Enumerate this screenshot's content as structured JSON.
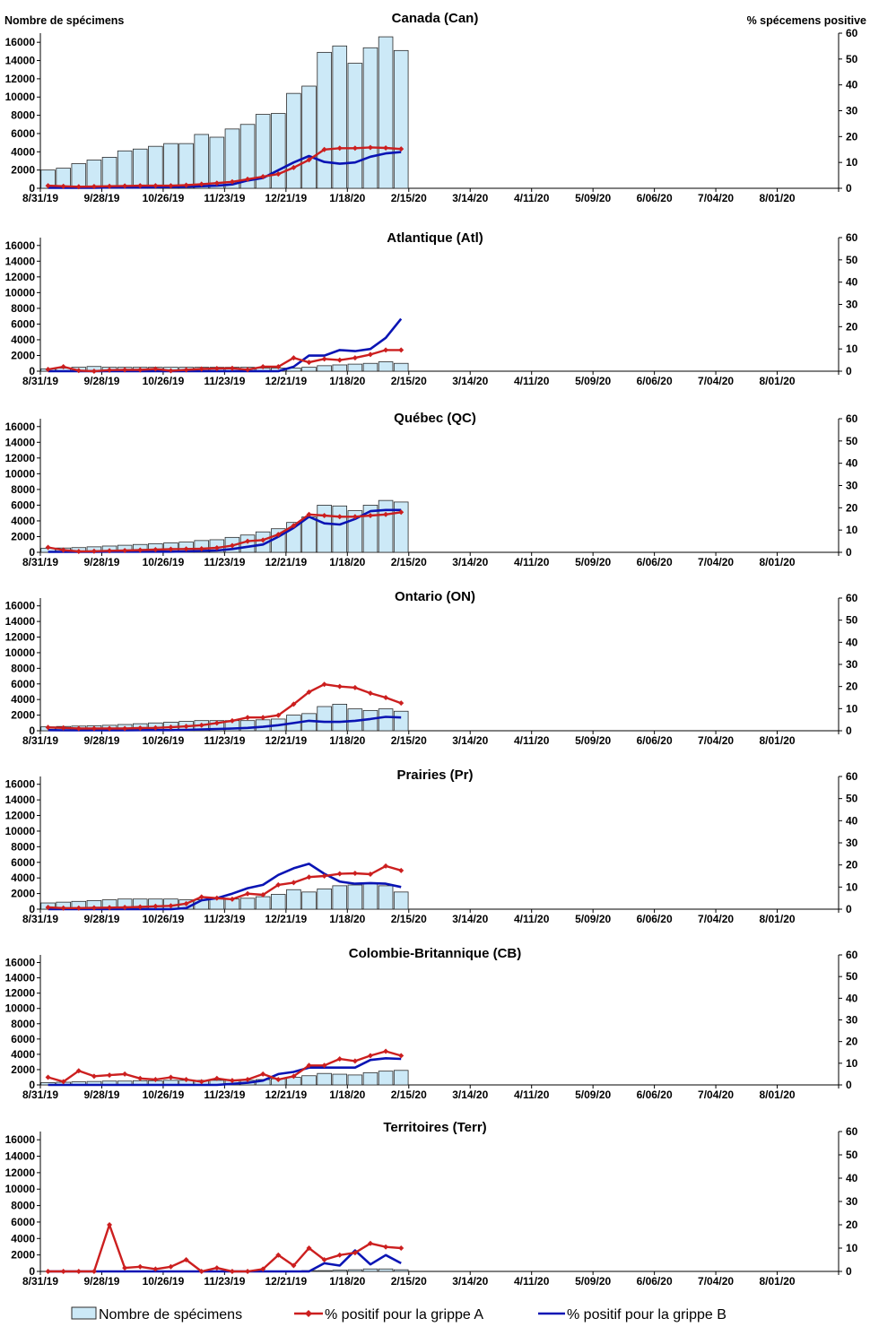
{
  "chart_data": {
    "type": "bar+line",
    "left_axis_label": "Nombre de spécimens",
    "right_axis_label": "% spécemens positive",
    "left_ticks": [
      0,
      2000,
      4000,
      6000,
      8000,
      10000,
      12000,
      14000,
      16000
    ],
    "right_ticks": [
      0,
      10,
      20,
      30,
      40,
      50,
      60
    ],
    "left_range": [
      0,
      17000
    ],
    "right_range": [
      0,
      60
    ],
    "x_tick_labels": [
      "8/31/19",
      "9/28/19",
      "10/26/19",
      "11/23/19",
      "12/21/19",
      "1/18/20",
      "2/15/20",
      "3/14/20",
      "4/11/20",
      "5/09/20",
      "6/06/20",
      "7/04/20",
      "8/01/20"
    ],
    "weeks_per_tick": 4,
    "total_weeks": 52,
    "legend": {
      "specimens": "Nombre de spécimens",
      "flu_a": "% positif pour la grippe A",
      "flu_b": "% positif pour la grippe B"
    },
    "colors": {
      "bar_fill": "#cce9f7",
      "bar_stroke": "#2b2b2b",
      "flu_a": "#cc1f1f",
      "flu_b": "#0a14b4"
    },
    "panels": [
      {
        "title": "Canada (Can)",
        "specimens": [
          2000,
          2200,
          2700,
          3100,
          3400,
          4100,
          4300,
          4600,
          4900,
          4900,
          5900,
          5600,
          6500,
          7000,
          8100,
          8200,
          10400,
          11200,
          14900,
          15600,
          13700,
          15400,
          16600,
          15100
        ],
        "flu_a": [
          1,
          0.8,
          0.6,
          0.7,
          0.8,
          0.9,
          1,
          1,
          1,
          1.2,
          1.6,
          2,
          2.5,
          3.5,
          4.5,
          5.5,
          8,
          11,
          15,
          15.5,
          15.5,
          15.8,
          15.6,
          15.2
        ],
        "flu_b": [
          0.2,
          0.2,
          0.2,
          0.2,
          0.3,
          0.3,
          0.3,
          0.4,
          0.5,
          0.6,
          0.8,
          1,
          1.5,
          3,
          4,
          7,
          10,
          12.5,
          10.2,
          9.5,
          10,
          12.2,
          13.5,
          14
        ]
      },
      {
        "title": "Atlantique (Atl)",
        "specimens": [
          300,
          400,
          500,
          600,
          500,
          500,
          500,
          500,
          500,
          500,
          500,
          500,
          500,
          500,
          400,
          400,
          400,
          500,
          700,
          800,
          900,
          1000,
          1200,
          1000
        ],
        "flu_a": [
          0.8,
          2,
          0.3,
          0,
          0.5,
          0.6,
          0.6,
          1,
          0.2,
          0.6,
          1,
          1.2,
          1.3,
          0.7,
          2,
          2,
          6,
          4,
          5.5,
          5,
          6,
          7.5,
          9.5,
          9.5
        ],
        "flu_b": [
          0,
          0,
          0,
          0,
          0,
          0,
          0,
          0,
          0,
          0,
          0,
          0,
          0,
          0,
          0,
          0,
          2,
          7,
          7,
          9.5,
          9,
          10,
          15,
          23.5
        ]
      },
      {
        "title": "Québec (QC)",
        "specimens": [
          500,
          550,
          600,
          700,
          800,
          900,
          1000,
          1100,
          1200,
          1300,
          1500,
          1600,
          1900,
          2200,
          2600,
          3000,
          3800,
          4500,
          6000,
          5900,
          5300,
          6000,
          6600,
          6400
        ],
        "flu_a": [
          2.2,
          1,
          0.4,
          0.5,
          0.7,
          0.8,
          1,
          1.2,
          1.4,
          1.5,
          1.6,
          2,
          3,
          5,
          5.5,
          8,
          12,
          17,
          16.5,
          16,
          16,
          16.5,
          17,
          18
        ],
        "flu_b": [
          0.2,
          0.2,
          0.2,
          0.2,
          0.3,
          0.3,
          0.3,
          0.3,
          0.3,
          0.4,
          0.6,
          0.8,
          1.5,
          2.5,
          3.5,
          7,
          11,
          16,
          13,
          12.5,
          15,
          18.5,
          19,
          19
        ]
      },
      {
        "title": "Ontario (ON)",
        "specimens": [
          500,
          550,
          600,
          650,
          700,
          800,
          900,
          1000,
          1100,
          1200,
          1300,
          1300,
          1300,
          1300,
          1400,
          1500,
          2000,
          2200,
          3100,
          3400,
          2800,
          2600,
          2800,
          2500
        ],
        "flu_a": [
          1.5,
          1.3,
          1,
          1,
          1,
          1,
          1.2,
          1.3,
          1.6,
          2,
          2.5,
          3.5,
          4.5,
          6,
          6,
          7,
          12,
          17.5,
          21,
          20,
          19.5,
          17,
          15,
          12.5
        ],
        "flu_b": [
          0.3,
          0.2,
          0.2,
          0.2,
          0.2,
          0.2,
          0.3,
          0.3,
          0.3,
          0.4,
          0.6,
          0.8,
          1,
          1.3,
          1.8,
          2.5,
          3.5,
          4.5,
          4,
          4,
          4.5,
          5.3,
          6.3,
          6
        ]
      },
      {
        "title": "Prairies (Pr)",
        "specimens": [
          800,
          900,
          1000,
          1100,
          1200,
          1300,
          1300,
          1300,
          1300,
          1200,
          1200,
          1300,
          1300,
          1400,
          1600,
          1900,
          2500,
          2200,
          2600,
          3000,
          3100,
          3300,
          3000,
          2200
        ],
        "flu_a": [
          0.8,
          0.5,
          0.5,
          0.6,
          0.7,
          0.8,
          1,
          1.3,
          1.5,
          2.5,
          5.5,
          5,
          4.5,
          7,
          6.5,
          11,
          12,
          14.5,
          15,
          16,
          16.2,
          15.8,
          19.5,
          17.5
        ],
        "flu_b": [
          0,
          0,
          0,
          0,
          0,
          0,
          0,
          0,
          0,
          0.5,
          4,
          5,
          7,
          9.5,
          11,
          15.5,
          18.5,
          20.5,
          16,
          12.5,
          11.5,
          11.8,
          11.5,
          10
        ]
      },
      {
        "title": "Colombie-Britannique (CB)",
        "specimens": [
          300,
          350,
          400,
          450,
          500,
          500,
          550,
          550,
          600,
          600,
          600,
          600,
          600,
          600,
          700,
          800,
          1000,
          1200,
          1500,
          1400,
          1300,
          1600,
          1800,
          1900
        ],
        "flu_a": [
          3.5,
          1.5,
          6.5,
          4,
          4.5,
          5,
          3,
          2.5,
          3.5,
          2.5,
          1.5,
          3,
          2,
          2.5,
          5,
          2.5,
          4,
          9,
          9,
          12,
          11,
          13.5,
          15.5,
          13.5
        ],
        "flu_b": [
          0,
          0,
          0,
          0,
          0,
          0,
          0,
          0,
          0,
          0,
          0,
          0,
          0.5,
          1,
          2,
          5,
          6,
          8,
          8,
          8,
          8,
          11.5,
          12.3,
          12
        ]
      },
      {
        "title": "Territoires (Terr)",
        "specimens": [
          0,
          0,
          0,
          0,
          0,
          50,
          50,
          50,
          50,
          50,
          50,
          50,
          50,
          50,
          50,
          50,
          50,
          100,
          100,
          150,
          200,
          300,
          300,
          200
        ],
        "flu_a": [
          0,
          0,
          0,
          0,
          20,
          1.5,
          2,
          1,
          2,
          5,
          0,
          1.5,
          0,
          0,
          1,
          7,
          2.5,
          10,
          5,
          7,
          8,
          12,
          10.5,
          10
        ],
        "flu_b": [
          0,
          0,
          0,
          0,
          0,
          0,
          0,
          0,
          0,
          0,
          0,
          0,
          0,
          0,
          0,
          0,
          0,
          0,
          3.5,
          2.5,
          9,
          3,
          7,
          3.5
        ]
      }
    ]
  }
}
